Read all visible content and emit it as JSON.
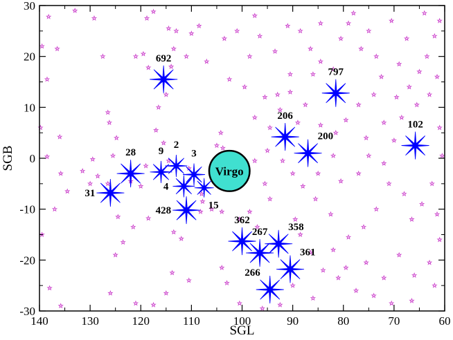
{
  "chart_data": {
    "type": "scatter",
    "xlabel": "SGL",
    "ylabel": "SGB",
    "xlim": [
      140,
      60
    ],
    "ylim": [
      -30,
      30
    ],
    "x_reversed": true,
    "x_ticks": [
      140,
      130,
      120,
      110,
      100,
      90,
      80,
      70,
      60
    ],
    "y_ticks": [
      30,
      20,
      10,
      0,
      -10,
      -20,
      -30
    ],
    "grid": false,
    "colors": {
      "group_star": "#0000ff",
      "background_galaxy": "#cc44cc",
      "virgo_fill": "#40e0d0",
      "virgo_edge": "#000000"
    },
    "virgo": {
      "label": "Virgo",
      "x": 102.5,
      "y": -2.5,
      "radius_deg": 4.0
    },
    "groups": [
      {
        "label": "692",
        "x": 115.5,
        "y": 15.5,
        "size": "large",
        "label_pos": "above"
      },
      {
        "label": "797",
        "x": 81.5,
        "y": 12.8,
        "size": "large",
        "label_pos": "above"
      },
      {
        "label": "206",
        "x": 91.5,
        "y": 4.2,
        "size": "large",
        "label_pos": "above"
      },
      {
        "label": "200",
        "x": 87.0,
        "y": 1.0,
        "size": "large",
        "label_pos": "above-right"
      },
      {
        "label": "102",
        "x": 65.8,
        "y": 2.5,
        "size": "large",
        "label_pos": "above"
      },
      {
        "label": "28",
        "x": 122.0,
        "y": -3.0,
        "size": "large",
        "label_pos": "above"
      },
      {
        "label": "9",
        "x": 116.0,
        "y": -2.7,
        "size": "medium",
        "label_pos": "above"
      },
      {
        "label": "2",
        "x": 113.0,
        "y": -1.5,
        "size": "medium",
        "label_pos": "above"
      },
      {
        "label": "3",
        "x": 109.5,
        "y": -3.2,
        "size": "medium",
        "label_pos": "above"
      },
      {
        "label": "4",
        "x": 111.5,
        "y": -5.5,
        "size": "medium",
        "label_pos": "left"
      },
      {
        "label": "15",
        "x": 107.5,
        "y": -5.8,
        "size": "small",
        "label_pos": "below-right"
      },
      {
        "label": "31",
        "x": 126.0,
        "y": -6.8,
        "size": "large",
        "label_pos": "left"
      },
      {
        "label": "428",
        "x": 111.0,
        "y": -10.2,
        "size": "large",
        "label_pos": "left"
      },
      {
        "label": "362",
        "x": 100.0,
        "y": -16.3,
        "size": "large",
        "label_pos": "above"
      },
      {
        "label": "267",
        "x": 96.5,
        "y": -18.6,
        "size": "large",
        "label_pos": "above"
      },
      {
        "label": "358",
        "x": 92.8,
        "y": -16.8,
        "size": "large",
        "label_pos": "above-right"
      },
      {
        "label": "361",
        "x": 90.5,
        "y": -21.8,
        "size": "large",
        "label_pos": "above-right"
      },
      {
        "label": "266",
        "x": 94.5,
        "y": -25.8,
        "size": "large",
        "label_pos": "above-left"
      }
    ],
    "background_galaxies": [
      [
        139.5,
        22.0
      ],
      [
        138.2,
        27.8
      ],
      [
        136.5,
        21.5
      ],
      [
        138.5,
        15.5
      ],
      [
        139.8,
        6.0
      ],
      [
        138.5,
        0.3
      ],
      [
        136.0,
        4.2
      ],
      [
        135.8,
        -3.0
      ],
      [
        134.5,
        -6.5
      ],
      [
        137.0,
        -10.0
      ],
      [
        139.5,
        -15.0
      ],
      [
        138.0,
        -25.5
      ],
      [
        135.8,
        -29.0
      ],
      [
        133.0,
        29.0
      ],
      [
        129.2,
        27.5
      ],
      [
        127.5,
        20.0
      ],
      [
        126.5,
        9.0
      ],
      [
        126.2,
        7.0
      ],
      [
        125.5,
        0.5
      ],
      [
        124.8,
        4.0
      ],
      [
        129.5,
        -0.2
      ],
      [
        130.0,
        -5.0
      ],
      [
        128.5,
        -3.5
      ],
      [
        131.5,
        -2.5
      ],
      [
        126.5,
        -5.0
      ],
      [
        122.0,
        -4.5
      ],
      [
        120.0,
        -5.5
      ],
      [
        124.5,
        -11.5
      ],
      [
        121.5,
        -13.5
      ],
      [
        118.5,
        -11.8
      ],
      [
        123.5,
        -16.5
      ],
      [
        125.0,
        -19.0
      ],
      [
        126.0,
        -26.5
      ],
      [
        121.0,
        -28.5
      ],
      [
        118.8,
        27.5
      ],
      [
        117.5,
        28.8
      ],
      [
        114.5,
        25.5
      ],
      [
        113.0,
        25.0
      ],
      [
        113.5,
        21.5
      ],
      [
        114.0,
        18.0
      ],
      [
        119.5,
        20.5
      ],
      [
        118.5,
        17.8
      ],
      [
        121.0,
        20.0
      ],
      [
        115.0,
        12.5
      ],
      [
        116.5,
        10.0
      ],
      [
        117.0,
        5.5
      ],
      [
        115.5,
        3.0
      ],
      [
        119.0,
        -1.5
      ],
      [
        114.5,
        -0.5
      ],
      [
        110.5,
        -2.0
      ],
      [
        108.0,
        -7.0
      ],
      [
        107.8,
        -8.5
      ],
      [
        105.0,
        2.5
      ],
      [
        104.2,
        5.0
      ],
      [
        103.8,
        2.0
      ],
      [
        106.0,
        -10.0
      ],
      [
        108.2,
        -10.5
      ],
      [
        104.0,
        -10.5
      ],
      [
        113.5,
        -14.5
      ],
      [
        112.0,
        -15.8
      ],
      [
        113.8,
        -22.5
      ],
      [
        110.5,
        -24.0
      ],
      [
        115.0,
        -26.5
      ],
      [
        117.5,
        -28.8
      ],
      [
        108.5,
        26.0
      ],
      [
        110.0,
        24.5
      ],
      [
        111.0,
        20.0
      ],
      [
        107.0,
        19.0
      ],
      [
        103.5,
        23.5
      ],
      [
        101.0,
        25.0
      ],
      [
        97.5,
        28.0
      ],
      [
        96.5,
        24.0
      ],
      [
        98.5,
        20.0
      ],
      [
        102.5,
        15.5
      ],
      [
        99.5,
        14.0
      ],
      [
        95.5,
        12.0
      ],
      [
        93.0,
        12.5
      ],
      [
        90.5,
        13.0
      ],
      [
        92.5,
        9.5
      ],
      [
        97.5,
        8.0
      ],
      [
        94.5,
        6.0
      ],
      [
        95.0,
        1.5
      ],
      [
        97.5,
        -0.5
      ],
      [
        95.5,
        -5.0
      ],
      [
        94.5,
        -8.0
      ],
      [
        98.5,
        -10.5
      ],
      [
        100.5,
        -12.0
      ],
      [
        97.0,
        -13.5
      ],
      [
        89.5,
        -12.0
      ],
      [
        88.5,
        -15.0
      ],
      [
        86.5,
        -18.5
      ],
      [
        90.0,
        -25.0
      ],
      [
        92.5,
        -28.8
      ],
      [
        96.0,
        -29.5
      ],
      [
        104.0,
        -21.5
      ],
      [
        103.0,
        -24.5
      ],
      [
        100.5,
        -28.5
      ],
      [
        88.5,
        25.0
      ],
      [
        86.5,
        21.5
      ],
      [
        84.5,
        19.0
      ],
      [
        86.0,
        16.5
      ],
      [
        82.0,
        17.5
      ],
      [
        80.5,
        23.5
      ],
      [
        79.0,
        26.5
      ],
      [
        78.0,
        28.5
      ],
      [
        75.0,
        25.0
      ],
      [
        76.5,
        21.5
      ],
      [
        73.5,
        20.0
      ],
      [
        72.5,
        16.0
      ],
      [
        74.0,
        12.5
      ],
      [
        77.0,
        10.5
      ],
      [
        79.5,
        7.5
      ],
      [
        81.5,
        5.0
      ],
      [
        84.5,
        6.5
      ],
      [
        82.0,
        0.5
      ],
      [
        85.0,
        -3.0
      ],
      [
        80.5,
        -4.5
      ],
      [
        77.0,
        -3.0
      ],
      [
        75.0,
        0.5
      ],
      [
        72.0,
        -1.0
      ],
      [
        70.0,
        3.5
      ],
      [
        68.5,
        8.0
      ],
      [
        65.5,
        10.5
      ],
      [
        63.0,
        12.5
      ],
      [
        61.5,
        16.0
      ],
      [
        63.5,
        20.0
      ],
      [
        62.0,
        24.0
      ],
      [
        61.0,
        27.0
      ],
      [
        64.0,
        28.5
      ],
      [
        67.5,
        23.5
      ],
      [
        70.5,
        27.0
      ],
      [
        69.0,
        18.5
      ],
      [
        61.0,
        6.0
      ],
      [
        60.5,
        0.5
      ],
      [
        62.5,
        -5.0
      ],
      [
        64.5,
        -9.0
      ],
      [
        66.5,
        -12.0
      ],
      [
        68.0,
        -7.0
      ],
      [
        71.0,
        -5.0
      ],
      [
        73.5,
        -10.0
      ],
      [
        76.0,
        -13.5
      ],
      [
        79.0,
        -15.5
      ],
      [
        82.0,
        -18.0
      ],
      [
        79.5,
        -21.5
      ],
      [
        75.5,
        -20.5
      ],
      [
        72.0,
        -23.5
      ],
      [
        69.0,
        -19.0
      ],
      [
        66.0,
        -23.0
      ],
      [
        63.0,
        -20.5
      ],
      [
        61.0,
        -16.0
      ],
      [
        61.5,
        -11.0
      ],
      [
        62.0,
        -25.0
      ],
      [
        66.5,
        -28.0
      ],
      [
        70.5,
        -28.5
      ],
      [
        74.0,
        -27.0
      ],
      [
        77.5,
        -26.0
      ],
      [
        81.0,
        -23.5
      ],
      [
        84.0,
        -22.0
      ],
      [
        86.0,
        -27.5
      ],
      [
        82.5,
        -11.0
      ],
      [
        85.5,
        -8.0
      ],
      [
        88.0,
        -5.5
      ],
      [
        90.0,
        -3.0
      ],
      [
        92.0,
        -0.5
      ],
      [
        89.0,
        7.0
      ],
      [
        87.5,
        10.5
      ],
      [
        90.5,
        16.5
      ],
      [
        93.5,
        21.0
      ],
      [
        91.0,
        26.0
      ],
      [
        84.5,
        26.5
      ],
      [
        72.0,
        7.0
      ],
      [
        75.5,
        4.0
      ],
      [
        67.0,
        14.0
      ],
      [
        65.0,
        17.0
      ],
      [
        69.5,
        12.0
      ]
    ]
  }
}
